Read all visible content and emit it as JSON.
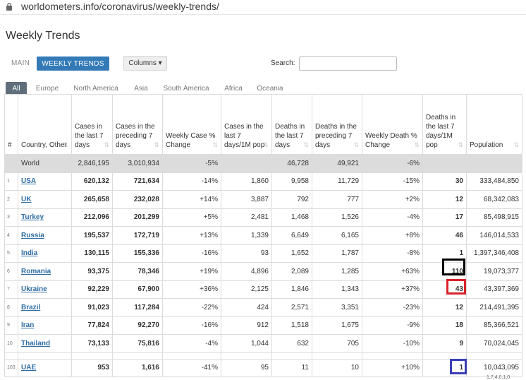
{
  "browser": {
    "url": "worldometers.info/coronavirus/weekly-trends/",
    "lock_icon": "lock-icon"
  },
  "page": {
    "title": "Weekly Trends"
  },
  "nav": {
    "main_label": "MAIN",
    "weekly_label": "WEEKLY TRENDS",
    "columns_label": "Columns ▾",
    "search_label": "Search:",
    "search_value": ""
  },
  "regions": [
    "All",
    "Europe",
    "North America",
    "Asia",
    "South America",
    "Africa",
    "Oceania"
  ],
  "colors": {
    "accent": "#337ab7",
    "link": "#2e6da4",
    "world_row": "#dcdcdc",
    "highlight_black": "#000000",
    "highlight_red": "#d9232a",
    "highlight_blue": "#3a3fb5"
  },
  "table": {
    "headers": [
      "#",
      "Country, Other",
      "Cases in the last 7 days",
      "Cases in the preceding 7 days",
      "Weekly Case % Change",
      "Cases in the last 7 days/1M pop",
      "Deaths in the last 7 days",
      "Deaths in the preceding 7 days",
      "Weekly Death % Change",
      "Deaths in the last 7 days/1M pop",
      "Population"
    ],
    "world": [
      "",
      "World",
      "2,846,195",
      "3,010,934",
      "-5%",
      "",
      "46,728",
      "49,921",
      "-6%",
      "",
      ""
    ],
    "rows": [
      [
        "1",
        "USA",
        "620,132",
        "721,634",
        "-14%",
        "1,860",
        "9,958",
        "11,729",
        "-15%",
        "30",
        "333,484,850"
      ],
      [
        "2",
        "UK",
        "265,658",
        "232,028",
        "+14%",
        "3,887",
        "792",
        "777",
        "+2%",
        "12",
        "68,342,083"
      ],
      [
        "3",
        "Turkey",
        "212,096",
        "201,299",
        "+5%",
        "2,481",
        "1,468",
        "1,526",
        "-4%",
        "17",
        "85,498,915"
      ],
      [
        "4",
        "Russia",
        "195,537",
        "172,719",
        "+13%",
        "1,339",
        "6,649",
        "6,165",
        "+8%",
        "46",
        "146,014,533"
      ],
      [
        "5",
        "India",
        "130,115",
        "155,336",
        "-16%",
        "93",
        "1,652",
        "1,787",
        "-8%",
        "1",
        "1,397,346,408"
      ],
      [
        "6",
        "Romania",
        "93,375",
        "78,346",
        "+19%",
        "4,896",
        "2,089",
        "1,285",
        "+63%",
        "110",
        "19,073,377"
      ],
      [
        "7",
        "Ukraine",
        "92,229",
        "67,900",
        "+36%",
        "2,125",
        "1,846",
        "1,343",
        "+37%",
        "43",
        "43,397,369"
      ],
      [
        "8",
        "Brazil",
        "91,023",
        "117,284",
        "-22%",
        "424",
        "2,571",
        "3,351",
        "-23%",
        "12",
        "214,491,395"
      ],
      [
        "9",
        "Iran",
        "77,824",
        "92,270",
        "-16%",
        "912",
        "1,518",
        "1,675",
        "-9%",
        "18",
        "85,366,521"
      ],
      [
        "10",
        "Thailand",
        "73,133",
        "75,816",
        "-4%",
        "1,044",
        "632",
        "705",
        "-10%",
        "9",
        "70,024,045"
      ]
    ],
    "extra_row": [
      "103",
      "UAE",
      "953",
      "1,616",
      "-41%",
      "95",
      "11",
      "10",
      "+10%",
      "1",
      "10,043,095"
    ]
  },
  "footer_fragment": "1,7,4,0,1,0"
}
